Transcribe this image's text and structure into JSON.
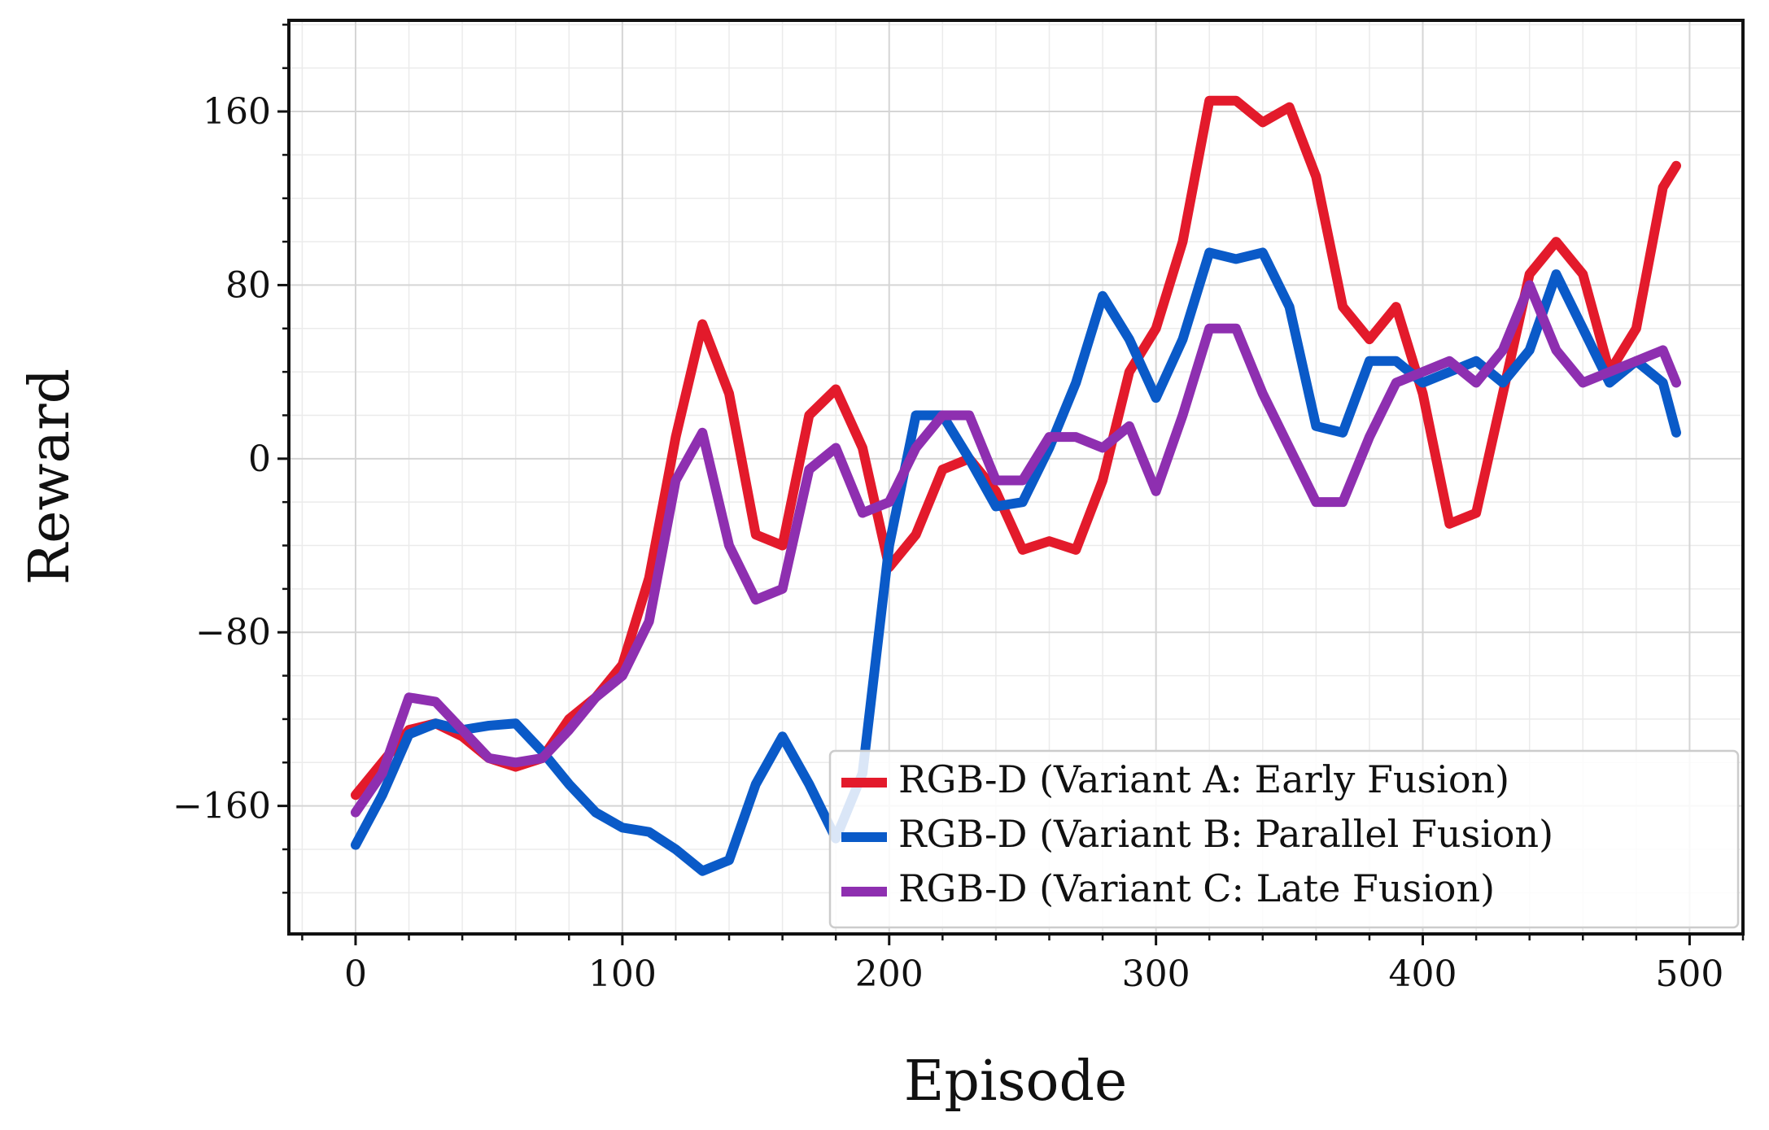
{
  "chart_data": {
    "type": "line",
    "x_label": "Episode",
    "y_label": "Reward",
    "x": [
      0,
      10,
      20,
      30,
      40,
      50,
      60,
      70,
      80,
      90,
      100,
      110,
      120,
      130,
      140,
      150,
      160,
      170,
      180,
      190,
      200,
      210,
      220,
      230,
      240,
      250,
      260,
      270,
      280,
      290,
      300,
      310,
      320,
      330,
      340,
      350,
      360,
      370,
      380,
      390,
      400,
      410,
      420,
      430,
      440,
      450,
      460,
      470,
      480,
      490,
      495
    ],
    "series": [
      {
        "name": "RGB-D (Variant A: Early Fusion)",
        "color": "#e31a2b",
        "values": [
          -155,
          -140,
          -125,
          -122,
          -128,
          -138,
          -142,
          -138,
          -120,
          -110,
          -95,
          -55,
          10,
          62,
          30,
          -35,
          -40,
          20,
          32,
          5,
          -50,
          -35,
          -5,
          0,
          -15,
          -42,
          -38,
          -42,
          -10,
          40,
          60,
          100,
          165,
          165,
          155,
          162,
          130,
          70,
          55,
          70,
          30,
          -30,
          -25,
          30,
          85,
          100,
          85,
          40,
          60,
          125,
          135
        ]
      },
      {
        "name": "RGB-D (Variant B: Parallel Fusion)",
        "color": "#0a5ac8",
        "values": [
          -178,
          -155,
          -127,
          -122,
          -125,
          -123,
          -122,
          -135,
          -150,
          -163,
          -170,
          -172,
          -180,
          -190,
          -185,
          -150,
          -128,
          -150,
          -175,
          -145,
          -40,
          20,
          20,
          0,
          -22,
          -20,
          5,
          35,
          75,
          55,
          28,
          55,
          95,
          92,
          95,
          70,
          15,
          12,
          45,
          45,
          35,
          40,
          45,
          35,
          50,
          85,
          60,
          35,
          45,
          35,
          12
        ]
      },
      {
        "name": "RGB-D (Variant C: Late Fusion)",
        "color": "#8e2fb0",
        "values": [
          -163,
          -145,
          -110,
          -112,
          -125,
          -138,
          -140,
          -138,
          -125,
          -110,
          -100,
          -75,
          -10,
          12,
          -40,
          -65,
          -60,
          -5,
          5,
          -25,
          -20,
          5,
          20,
          20,
          -10,
          -10,
          10,
          10,
          5,
          15,
          -15,
          20,
          60,
          60,
          30,
          5,
          -20,
          -20,
          10,
          35,
          40,
          45,
          35,
          50,
          80,
          50,
          35,
          40,
          45,
          50,
          35
        ]
      }
    ],
    "xlim": [
      -25,
      520
    ],
    "ylim": [
      -219,
      202
    ],
    "xticks": [
      0,
      100,
      200,
      300,
      400,
      500
    ],
    "yticks": [
      {
        "value": -160,
        "label": "−160"
      },
      {
        "value": -80,
        "label": "−80"
      },
      0,
      80,
      160
    ],
    "xminorticks": [
      -20,
      20,
      40,
      60,
      80,
      120,
      140,
      160,
      180,
      220,
      240,
      260,
      280,
      320,
      340,
      360,
      380,
      420,
      440,
      460,
      480,
      520
    ],
    "yminorticks": [
      -200,
      -180,
      -140,
      -120,
      -100,
      -60,
      -40,
      -20,
      20,
      40,
      60,
      100,
      120,
      140,
      180,
      200
    ],
    "grid": true,
    "legend": "lower right"
  }
}
